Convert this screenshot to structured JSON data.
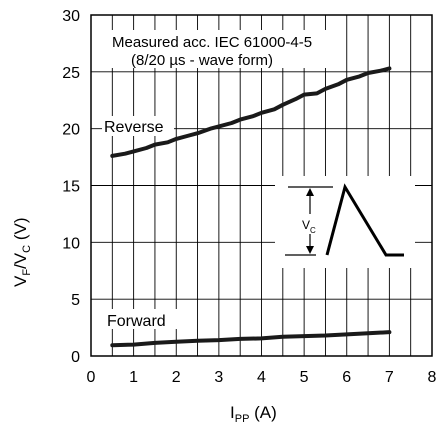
{
  "chart_data": {
    "type": "line",
    "title": "",
    "xlabel": {
      "main": "I",
      "sub": "PP",
      "unit": " (A)"
    },
    "ylabel": {
      "main_f": "V",
      "sub_f": "F",
      "sep": "/V",
      "sub_c": "C",
      "unit": " (V)"
    },
    "xlim": [
      0,
      8
    ],
    "ylim": [
      0,
      30
    ],
    "xticks": [
      0,
      1,
      2,
      3,
      4,
      5,
      6,
      7,
      8
    ],
    "yticks": [
      0,
      5,
      10,
      15,
      20,
      25,
      30
    ],
    "x_minor_grid_step": 0.5,
    "grid": true,
    "annotations": [
      "Measured acc. IEC 61000-4-5",
      "(8/20 µs - wave form)"
    ],
    "series": [
      {
        "name": "Reverse",
        "x": [
          0.5,
          0.8,
          1.0,
          1.3,
          1.5,
          1.8,
          2.0,
          2.3,
          2.5,
          2.8,
          3.0,
          3.3,
          3.5,
          3.8,
          4.0,
          4.3,
          4.5,
          4.8,
          5.0,
          5.3,
          5.5,
          5.8,
          6.0,
          6.3,
          6.5,
          6.8,
          7.0
        ],
        "y": [
          17.6,
          17.8,
          18.0,
          18.3,
          18.6,
          18.8,
          19.1,
          19.4,
          19.6,
          20.0,
          20.2,
          20.5,
          20.8,
          21.1,
          21.4,
          21.7,
          22.1,
          22.6,
          23.0,
          23.1,
          23.5,
          23.9,
          24.3,
          24.6,
          24.9,
          25.1,
          25.3
        ],
        "color": "#1a1a1a"
      },
      {
        "name": "Forward",
        "x": [
          0.5,
          1.0,
          1.5,
          2.0,
          2.5,
          3.0,
          3.5,
          4.0,
          4.5,
          5.0,
          5.5,
          6.0,
          6.5,
          7.0
        ],
        "y": [
          0.95,
          1.0,
          1.15,
          1.25,
          1.35,
          1.4,
          1.5,
          1.55,
          1.7,
          1.75,
          1.8,
          1.9,
          2.0,
          2.1
        ],
        "color": "#1a1a1a"
      }
    ],
    "inset": {
      "label_main": "V",
      "label_sub": "C"
    }
  }
}
